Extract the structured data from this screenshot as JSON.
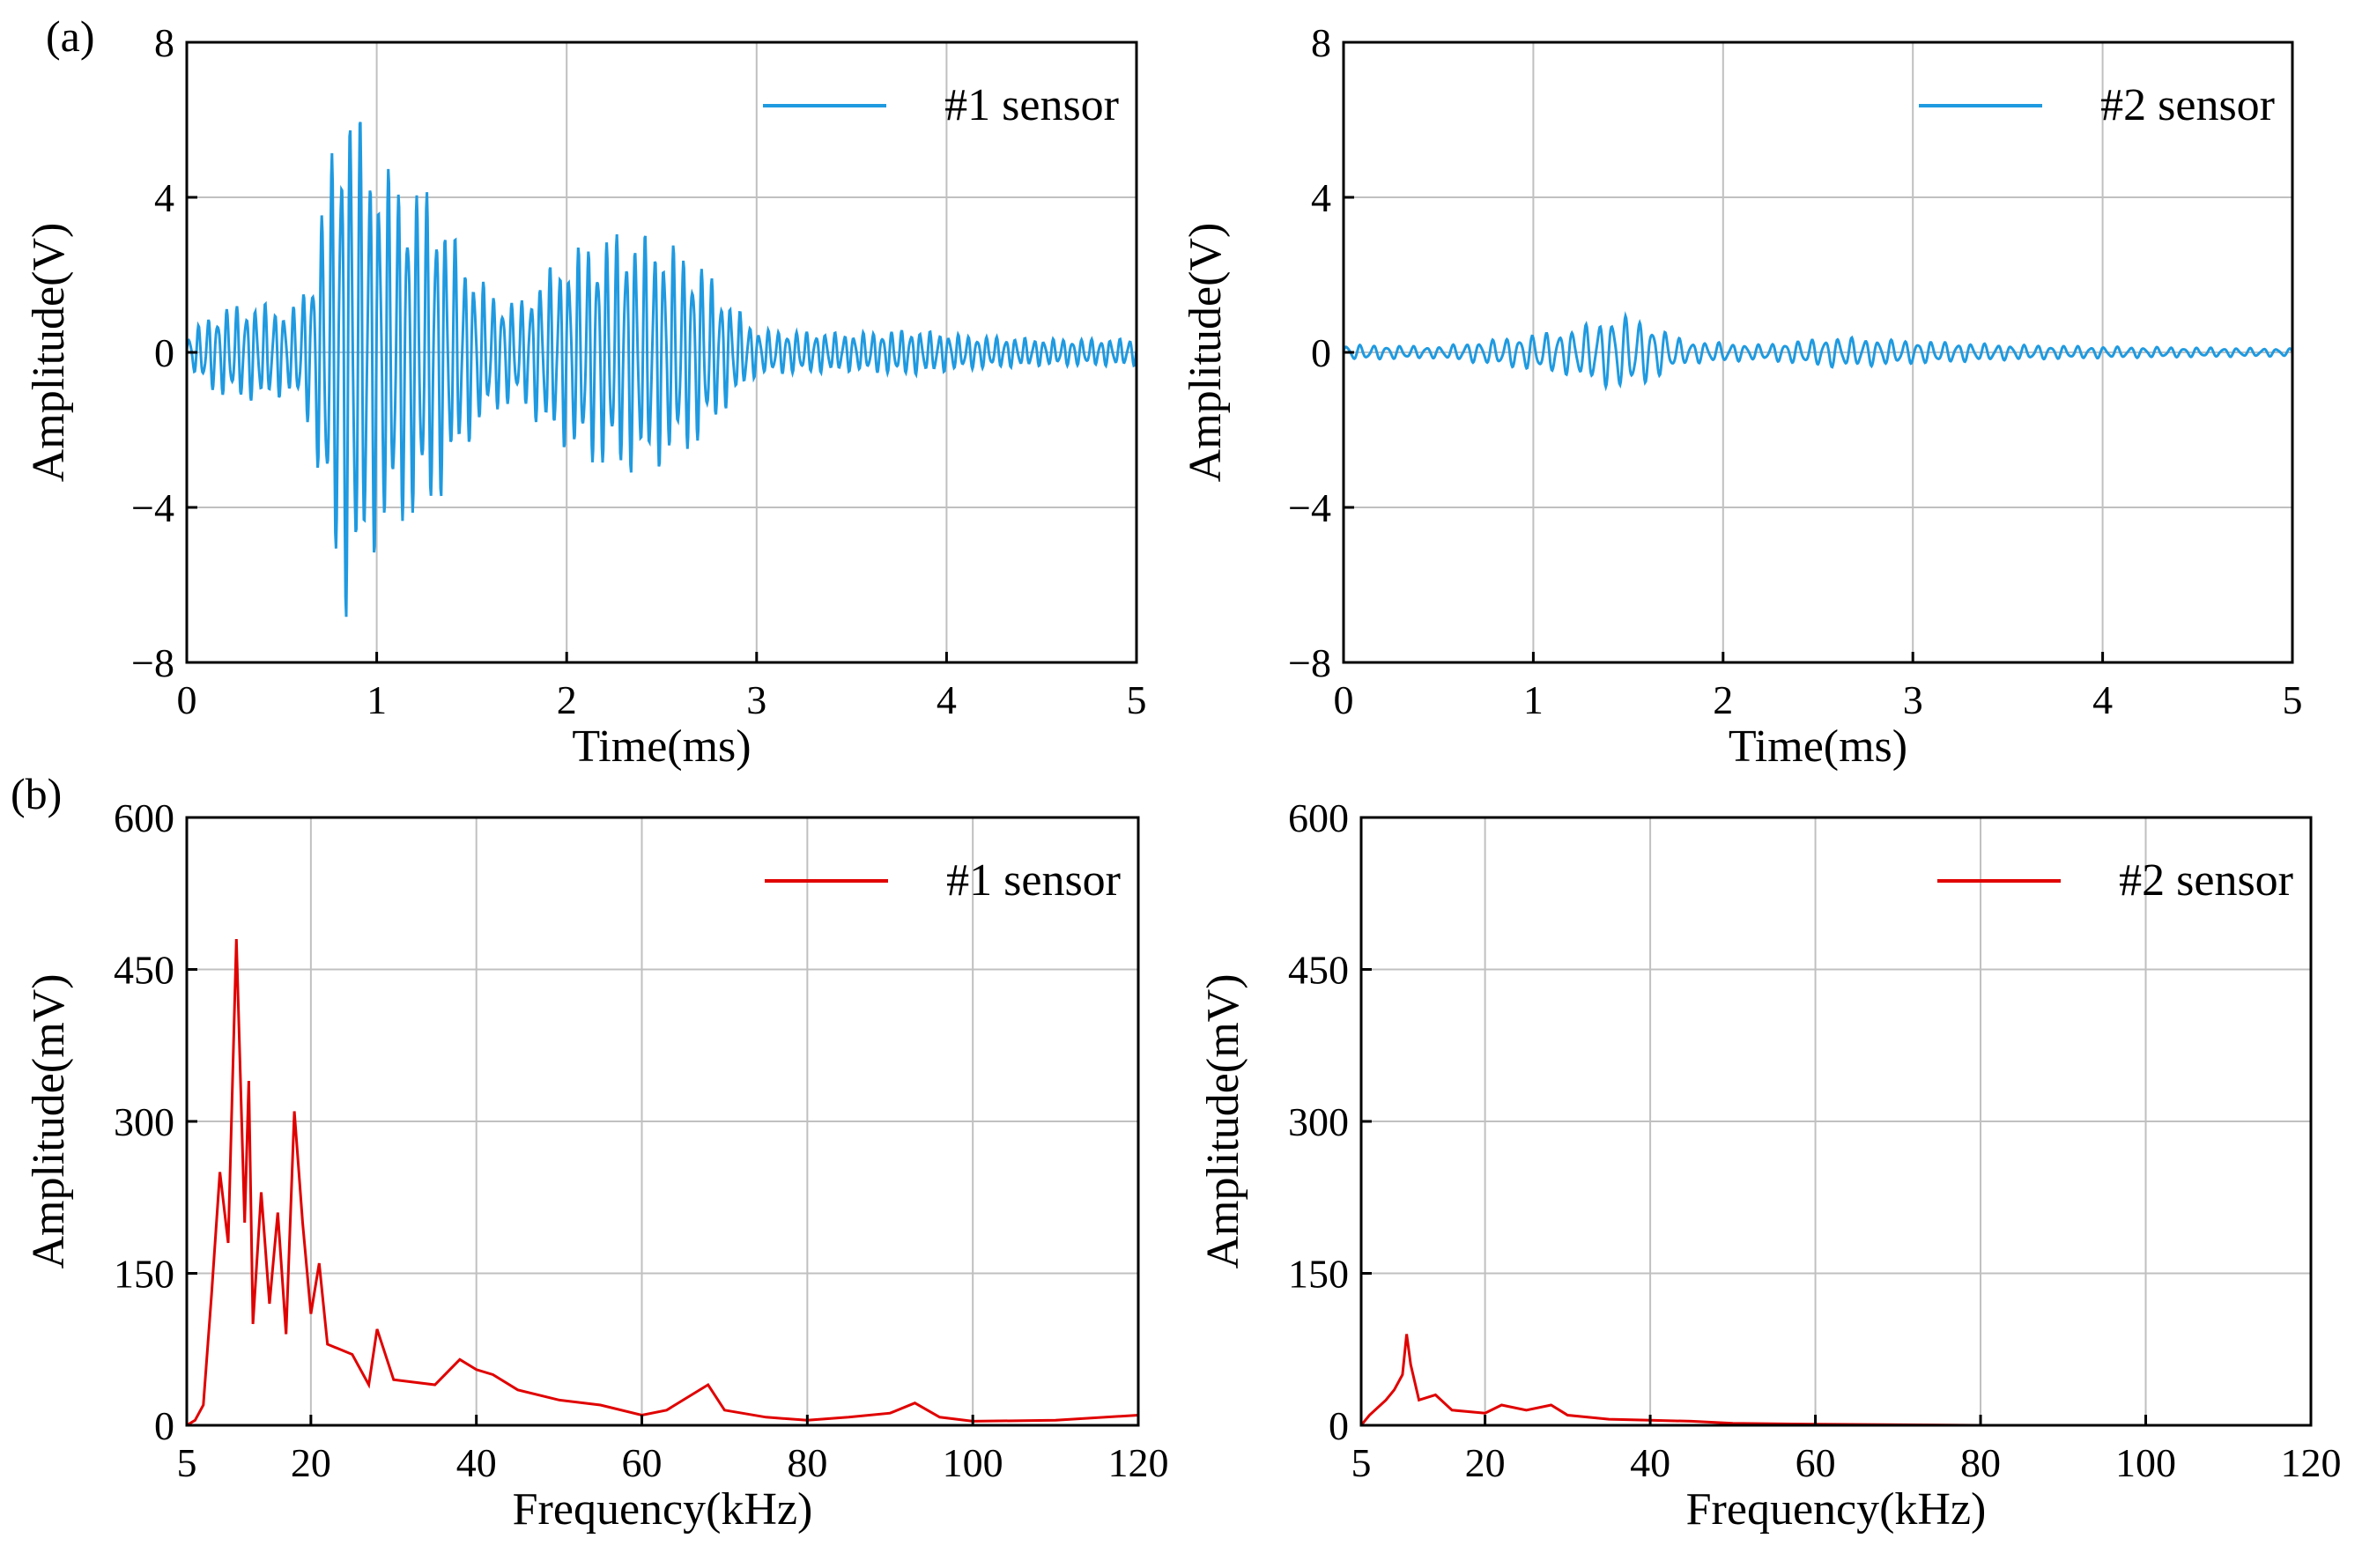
{
  "panel_labels": {
    "a": "(a)",
    "b": "(b)"
  },
  "colors": {
    "time_signal": "#1f9ae0",
    "spectrum": "#e00000",
    "grid": "#c0c0c0",
    "axes": "#000000"
  },
  "chart_data": [
    {
      "type": "line",
      "panel": "(a)",
      "xlabel": "Time(ms)",
      "ylabel": "Amplitude(V)",
      "xlim": [
        0,
        5
      ],
      "ylim": [
        -8,
        8
      ],
      "xticks": [
        0,
        1,
        2,
        3,
        4,
        5
      ],
      "yticks": [
        -8,
        -4,
        0,
        4,
        8
      ],
      "ytick_labels": [
        "−8",
        "−4",
        "0",
        "4",
        "8"
      ],
      "grid": true,
      "legend_position": "top-right",
      "series": [
        {
          "name": "#1 sensor",
          "color": "#1f9ae0",
          "envelope": [
            [
              0,
              0.4
            ],
            [
              0.1,
              0.9
            ],
            [
              0.2,
              1.2
            ],
            [
              0.4,
              1.3
            ],
            [
              0.55,
              1.1
            ],
            [
              0.65,
              2.0
            ],
            [
              0.75,
              5.0
            ],
            [
              0.85,
              7.2
            ],
            [
              0.95,
              5.5
            ],
            [
              1.1,
              4.6
            ],
            [
              1.3,
              4.2
            ],
            [
              1.45,
              2.6
            ],
            [
              1.6,
              1.6
            ],
            [
              1.75,
              1.3
            ],
            [
              1.9,
              2.2
            ],
            [
              2.1,
              2.9
            ],
            [
              2.3,
              3.2
            ],
            [
              2.5,
              3.0
            ],
            [
              2.7,
              2.4
            ],
            [
              2.85,
              1.4
            ],
            [
              3.0,
              0.6
            ],
            [
              3.5,
              0.5
            ],
            [
              3.8,
              0.6
            ],
            [
              4.1,
              0.45
            ],
            [
              4.5,
              0.35
            ],
            [
              5.0,
              0.35
            ]
          ],
          "period_ms": 0.05
        }
      ]
    },
    {
      "type": "line",
      "panel": "",
      "xlabel": "Time(ms)",
      "ylabel": "Amplitude(V)",
      "xlim": [
        0,
        5
      ],
      "ylim": [
        -8,
        8
      ],
      "xticks": [
        0,
        1,
        2,
        3,
        4,
        5
      ],
      "yticks": [
        -8,
        -4,
        0,
        4,
        8
      ],
      "ytick_labels": [
        "−8",
        "−4",
        "0",
        "4",
        "8"
      ],
      "grid": true,
      "legend_position": "top-right",
      "series": [
        {
          "name": "#2 sensor",
          "color": "#1f9ae0",
          "envelope": [
            [
              0,
              0.2
            ],
            [
              0.5,
              0.15
            ],
            [
              0.9,
              0.4
            ],
            [
              1.2,
              0.6
            ],
            [
              1.45,
              1.0
            ],
            [
              1.6,
              0.8
            ],
            [
              1.8,
              0.3
            ],
            [
              2.2,
              0.2
            ],
            [
              2.6,
              0.4
            ],
            [
              3.0,
              0.3
            ],
            [
              3.5,
              0.2
            ],
            [
              4.0,
              0.15
            ],
            [
              5.0,
              0.1
            ]
          ],
          "period_ms": 0.07
        }
      ]
    },
    {
      "type": "line",
      "panel": "(b)",
      "xlabel": "Frequency(kHz)",
      "ylabel": "Amplitude(mV)",
      "xlim": [
        5,
        120
      ],
      "ylim": [
        0,
        600
      ],
      "xticks": [
        5,
        20,
        40,
        60,
        80,
        100,
        120
      ],
      "yticks": [
        0,
        150,
        300,
        450,
        600
      ],
      "grid": true,
      "legend_position": "top-right",
      "series": [
        {
          "name": "#1 sensor",
          "color": "#e00000",
          "points": [
            [
              5,
              0
            ],
            [
              6,
              5
            ],
            [
              7,
              20
            ],
            [
              8,
              130
            ],
            [
              9,
              250
            ],
            [
              10,
              180
            ],
            [
              11,
              480
            ],
            [
              12,
              200
            ],
            [
              12.5,
              340
            ],
            [
              13,
              100
            ],
            [
              14,
              230
            ],
            [
              15,
              120
            ],
            [
              16,
              210
            ],
            [
              17,
              90
            ],
            [
              18,
              310
            ],
            [
              19,
              200
            ],
            [
              20,
              110
            ],
            [
              21,
              160
            ],
            [
              22,
              80
            ],
            [
              25,
              70
            ],
            [
              27,
              40
            ],
            [
              28,
              95
            ],
            [
              30,
              45
            ],
            [
              35,
              40
            ],
            [
              38,
              65
            ],
            [
              40,
              55
            ],
            [
              42,
              50
            ],
            [
              45,
              35
            ],
            [
              50,
              25
            ],
            [
              55,
              20
            ],
            [
              60,
              10
            ],
            [
              63,
              15
            ],
            [
              66,
              30
            ],
            [
              68,
              40
            ],
            [
              70,
              15
            ],
            [
              75,
              8
            ],
            [
              80,
              5
            ],
            [
              85,
              8
            ],
            [
              90,
              12
            ],
            [
              93,
              22
            ],
            [
              96,
              8
            ],
            [
              100,
              4
            ],
            [
              110,
              5
            ],
            [
              120,
              10
            ]
          ]
        }
      ]
    },
    {
      "type": "line",
      "panel": "",
      "xlabel": "Frequency(kHz)",
      "ylabel": "Amplitude(mV)",
      "xlim": [
        5,
        120
      ],
      "ylim": [
        0,
        600
      ],
      "xticks": [
        5,
        20,
        40,
        60,
        80,
        100,
        120
      ],
      "yticks": [
        0,
        150,
        300,
        450,
        600
      ],
      "grid": true,
      "legend_position": "top-right",
      "series": [
        {
          "name": "#2 sensor",
          "color": "#e00000",
          "points": [
            [
              5,
              0
            ],
            [
              6,
              10
            ],
            [
              8,
              25
            ],
            [
              9,
              35
            ],
            [
              10,
              50
            ],
            [
              10.5,
              90
            ],
            [
              11,
              60
            ],
            [
              12,
              25
            ],
            [
              14,
              30
            ],
            [
              16,
              15
            ],
            [
              20,
              12
            ],
            [
              22,
              20
            ],
            [
              25,
              15
            ],
            [
              28,
              20
            ],
            [
              30,
              10
            ],
            [
              35,
              6
            ],
            [
              40,
              5
            ],
            [
              45,
              4
            ],
            [
              50,
              2
            ],
            [
              60,
              1
            ],
            [
              80,
              0
            ],
            [
              120,
              0
            ]
          ]
        }
      ]
    }
  ]
}
